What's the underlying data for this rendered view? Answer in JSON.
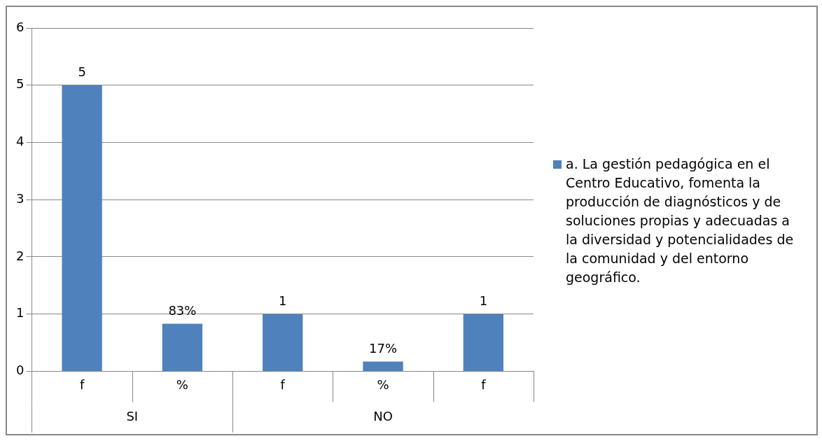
{
  "chart_data": {
    "type": "bar",
    "categories": [
      "f",
      "%",
      "f",
      "%",
      "f"
    ],
    "series": [
      {
        "name": "a. La gestión pedagógica en el Centro  Educativo, fomenta la producción de diagnósticos y de soluciones propias y adecuadas a la diversidad y potencialidades de la comunidad y del entorno geográfico.",
        "color": "#4f81bd",
        "values": [
          5,
          0.83,
          1,
          0.17,
          1
        ],
        "value_labels": [
          "5",
          "83%",
          "1",
          "17%",
          "1"
        ]
      }
    ],
    "annotations": [
      "SI",
      "NO"
    ],
    "ylim": [
      0,
      6
    ],
    "yticks": [
      0,
      1,
      2,
      3,
      4,
      5,
      6
    ],
    "grid": "y",
    "legend": "right"
  }
}
